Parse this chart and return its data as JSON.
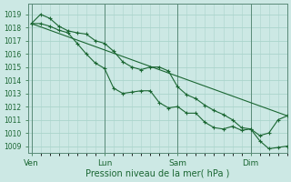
{
  "xlabel": "Pression niveau de la mer( hPa )",
  "bg_color": "#cce8e4",
  "grid_color": "#aad4cc",
  "line_color": "#1a6632",
  "ylim": [
    1008.5,
    1019.8
  ],
  "yticks": [
    1009,
    1010,
    1011,
    1012,
    1013,
    1014,
    1015,
    1016,
    1017,
    1018,
    1019
  ],
  "xtick_labels": [
    "Ven",
    "Lun",
    "Sam",
    "Dim"
  ],
  "xtick_positions": [
    0,
    24,
    48,
    72
  ],
  "xlim": [
    -1,
    84
  ],
  "line1_x": [
    0,
    3,
    6,
    9,
    12,
    15,
    18,
    21,
    24,
    27,
    30,
    33,
    36,
    39,
    42,
    45,
    48,
    51,
    54,
    57,
    60,
    63,
    66,
    69,
    72,
    75,
    78,
    81,
    84
  ],
  "line1_y": [
    1018.3,
    1019.0,
    1018.7,
    1018.1,
    1017.75,
    1017.6,
    1017.5,
    1017.0,
    1016.8,
    1016.2,
    1015.4,
    1015.0,
    1014.8,
    1015.0,
    1015.0,
    1014.7,
    1013.5,
    1012.9,
    1012.6,
    1012.1,
    1011.7,
    1011.4,
    1011.0,
    1010.4,
    1010.3,
    1009.4,
    1008.8,
    1008.9,
    1009.0
  ],
  "line2_x": [
    0,
    3,
    6,
    9,
    12,
    15,
    18,
    21,
    24,
    27,
    30,
    33,
    36,
    39,
    42,
    45,
    48,
    51,
    54,
    57,
    60,
    63,
    66,
    69,
    72,
    75,
    78,
    81,
    84
  ],
  "line2_y": [
    1018.3,
    1018.3,
    1018.1,
    1017.8,
    1017.6,
    1016.8,
    1016.0,
    1015.3,
    1014.9,
    1013.4,
    1013.0,
    1013.1,
    1013.2,
    1013.2,
    1012.3,
    1011.9,
    1012.0,
    1011.5,
    1011.5,
    1010.8,
    1010.4,
    1010.3,
    1010.5,
    1010.2,
    1010.3,
    1009.8,
    1010.0,
    1011.0,
    1011.3
  ],
  "line3_x": [
    0,
    84
  ],
  "line3_y": [
    1018.3,
    1011.3
  ]
}
